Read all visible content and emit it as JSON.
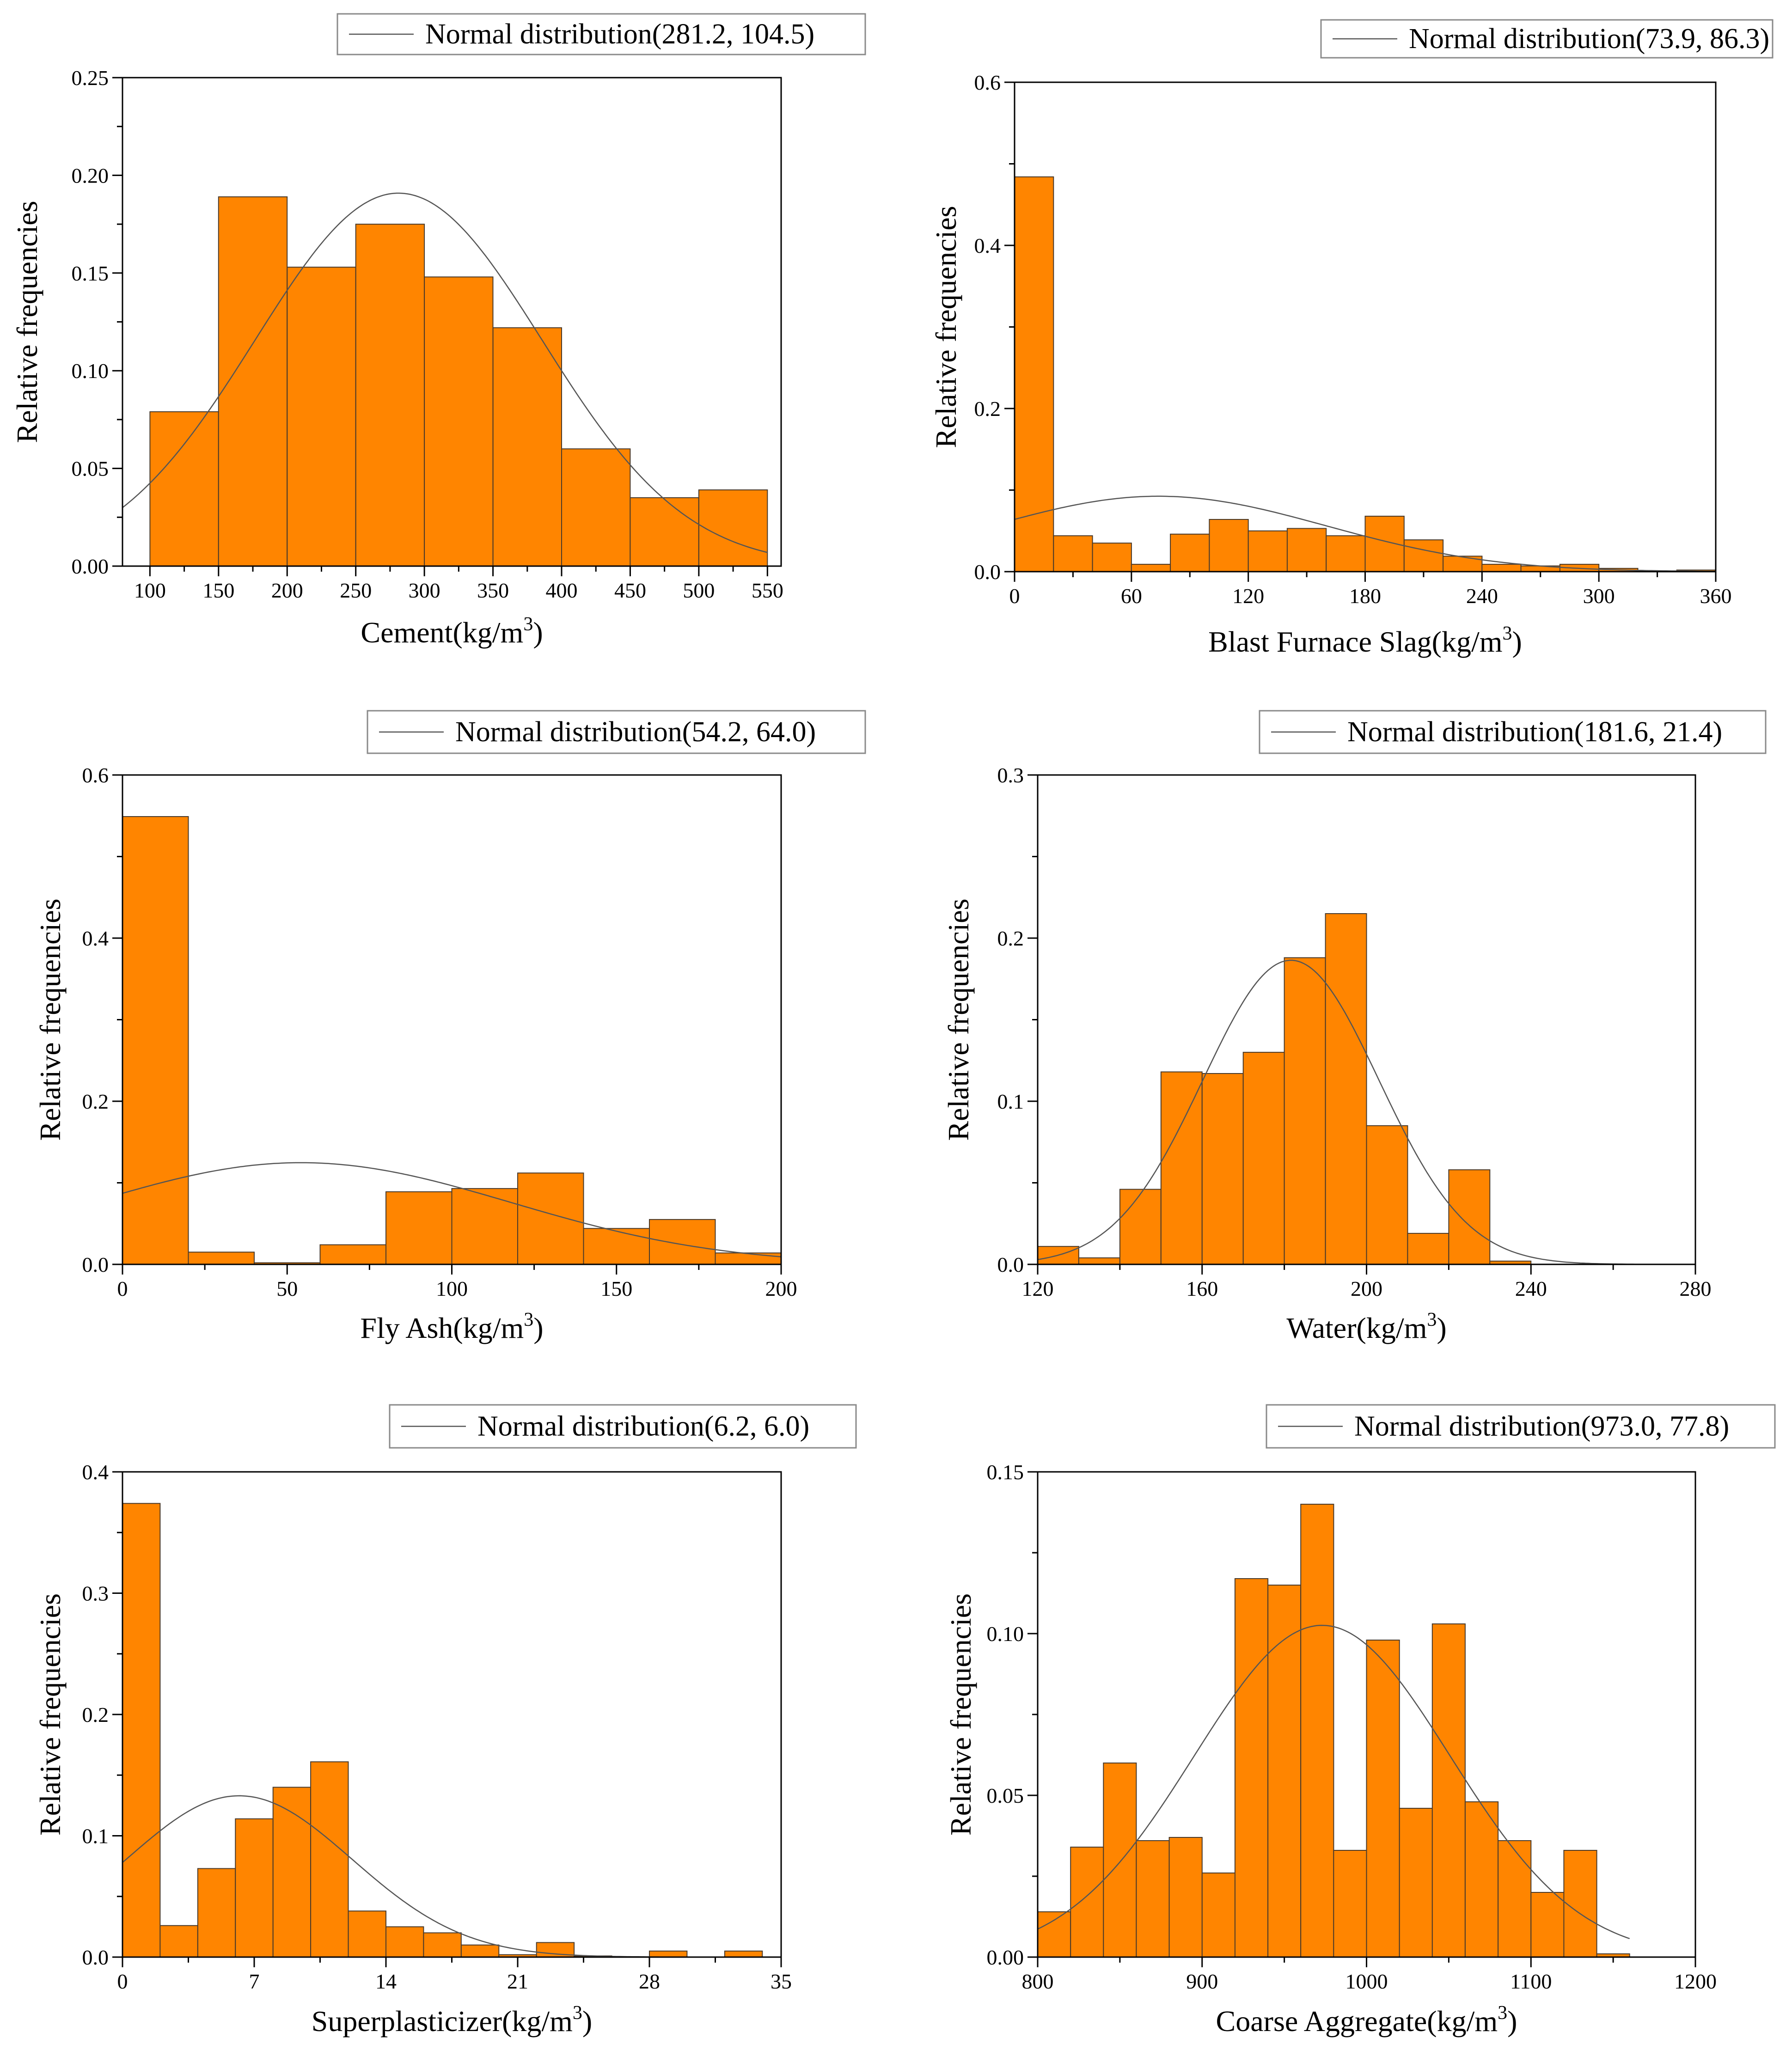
{
  "figure": {
    "ylabel": "Relative frequencies",
    "colors": {
      "bar_fill": "#FF8500",
      "bar_stroke": "#4a3a2a",
      "curve": "#555555",
      "axis": "#000000",
      "legend_border": "#8a8a8a"
    }
  },
  "chart_data": [
    {
      "type": "bar",
      "xlabel_main": "Cement(kg/m",
      "xlabel_sup": "3",
      "xlabel_end": ")",
      "ylabel": "Relative frequencies",
      "legend": "Normal distribution(281.2, 104.5)",
      "normal": {
        "mean": 281.2,
        "sd": 104.5
      },
      "xlim": [
        80,
        560
      ],
      "ylim": [
        0,
        0.25
      ],
      "xticks": [
        100,
        150,
        200,
        250,
        300,
        350,
        400,
        450,
        500,
        550
      ],
      "xtick_labels": [
        "100",
        "150",
        "200",
        "250",
        "300",
        "350",
        "400",
        "450",
        "500",
        "550"
      ],
      "yticks": [
        0,
        0.05,
        0.1,
        0.15,
        0.2,
        0.25
      ],
      "ytick_labels": [
        "0.00",
        "0.05",
        "0.10",
        "0.15",
        "0.20",
        "0.25"
      ],
      "bin_start": 100,
      "bin_width": 50,
      "values": [
        0.079,
        0.189,
        0.153,
        0.175,
        0.148,
        0.122,
        0.06,
        0.035,
        0.039
      ],
      "curve_range": [
        80,
        550
      ]
    },
    {
      "type": "bar",
      "xlabel_main": "Blast Furnace Slag(kg/m",
      "xlabel_sup": "3",
      "xlabel_end": ")",
      "ylabel": "Relative frequencies",
      "legend": "Normal distribution(73.9, 86.3)",
      "normal": {
        "mean": 73.9,
        "sd": 86.3
      },
      "xlim": [
        0,
        360
      ],
      "ylim": [
        0,
        0.6
      ],
      "xticks": [
        0,
        60,
        120,
        180,
        240,
        300,
        360
      ],
      "xtick_labels": [
        "0",
        "60",
        "120",
        "180",
        "240",
        "300",
        "360"
      ],
      "yticks": [
        0,
        0.2,
        0.4,
        0.6
      ],
      "ytick_labels": [
        "0.0",
        "0.2",
        "0.4",
        "0.6"
      ],
      "bin_start": 0,
      "bin_width": 20,
      "values": [
        0.484,
        0.044,
        0.035,
        0.009,
        0.046,
        0.064,
        0.05,
        0.053,
        0.044,
        0.068,
        0.039,
        0.019,
        0.009,
        0.007,
        0.009,
        0.004,
        0.0,
        0.002
      ],
      "curve_range": [
        0,
        360
      ]
    },
    {
      "type": "bar",
      "xlabel_main": "Fly Ash(kg/m",
      "xlabel_sup": "3",
      "xlabel_end": ")",
      "ylabel": "Relative frequencies",
      "legend": "Normal distribution(54.2, 64.0)",
      "normal": {
        "mean": 54.2,
        "sd": 64.0
      },
      "xlim": [
        0,
        200
      ],
      "ylim": [
        0,
        0.6
      ],
      "xticks": [
        0,
        50,
        100,
        150,
        200
      ],
      "xtick_labels": [
        "0",
        "50",
        "100",
        "150",
        "200"
      ],
      "yticks": [
        0,
        0.2,
        0.4,
        0.6
      ],
      "ytick_labels": [
        "0.0",
        "0.2",
        "0.4",
        "0.6"
      ],
      "bin_start": 0,
      "bin_width": 20,
      "values": [
        0.549,
        0.015,
        0.002,
        0.024,
        0.089,
        0.093,
        0.112,
        0.044,
        0.055,
        0.014
      ],
      "curve_range": [
        0,
        200
      ]
    },
    {
      "type": "bar",
      "xlabel_main": "Water(kg/m",
      "xlabel_sup": "3",
      "xlabel_end": ")",
      "ylabel": "Relative frequencies",
      "legend": "Normal distribution(181.6, 21.4)",
      "normal": {
        "mean": 181.6,
        "sd": 21.4
      },
      "xlim": [
        120,
        280
      ],
      "ylim": [
        0,
        0.3
      ],
      "xticks": [
        120,
        160,
        200,
        240,
        280
      ],
      "xtick_labels": [
        "120",
        "160",
        "200",
        "240",
        "280"
      ],
      "yticks": [
        0,
        0.1,
        0.2,
        0.3
      ],
      "ytick_labels": [
        "0.0",
        "0.1",
        "0.2",
        "0.3"
      ],
      "bin_start": 120,
      "bin_width": 10,
      "values": [
        0.011,
        0.004,
        0.046,
        0.118,
        0.117,
        0.13,
        0.188,
        0.215,
        0.085,
        0.019,
        0.058,
        0.002,
        0.0
      ],
      "curve_range": [
        120,
        280
      ]
    },
    {
      "type": "bar",
      "xlabel_main": "Superplasticizer(kg/m",
      "xlabel_sup": "3",
      "xlabel_end": ")",
      "ylabel": "Relative frequencies",
      "legend": "Normal distribution(6.2, 6.0)",
      "normal": {
        "mean": 6.2,
        "sd": 6.0
      },
      "xlim": [
        0,
        35
      ],
      "ylim": [
        0,
        0.4
      ],
      "xticks": [
        0,
        7,
        14,
        21,
        28,
        35
      ],
      "xtick_labels": [
        "0",
        "7",
        "14",
        "21",
        "28",
        "35"
      ],
      "yticks": [
        0,
        0.1,
        0.2,
        0.3,
        0.4
      ],
      "ytick_labels": [
        "0.0",
        "0.1",
        "0.2",
        "0.3",
        "0.4"
      ],
      "bin_start": 0,
      "bin_width": 2,
      "values": [
        0.374,
        0.026,
        0.073,
        0.114,
        0.14,
        0.161,
        0.038,
        0.025,
        0.02,
        0.01,
        0.002,
        0.012,
        0.001,
        0.0,
        0.005,
        0.0,
        0.005
      ],
      "curve_range": [
        0,
        35
      ]
    },
    {
      "type": "bar",
      "xlabel_main": "Coarse Aggregate(kg/m",
      "xlabel_sup": "3",
      "xlabel_end": ")",
      "ylabel": "Relative frequencies",
      "legend": "Normal distribution(973.0, 77.8)",
      "normal": {
        "mean": 973.0,
        "sd": 77.8
      },
      "xlim": [
        800,
        1200
      ],
      "ylim": [
        0,
        0.15
      ],
      "xticks": [
        800,
        900,
        1000,
        1100,
        1200
      ],
      "xtick_labels": [
        "800",
        "900",
        "1000",
        "1100",
        "1200"
      ],
      "yticks": [
        0,
        0.05,
        0.1,
        0.15
      ],
      "ytick_labels": [
        "0.00",
        "0.05",
        "0.10",
        "0.15"
      ],
      "bin_start": 800,
      "bin_width": 20,
      "values": [
        0.014,
        0.034,
        0.06,
        0.036,
        0.037,
        0.026,
        0.117,
        0.115,
        0.14,
        0.033,
        0.098,
        0.046,
        0.103,
        0.048,
        0.036,
        0.02,
        0.033,
        0.001
      ],
      "curve_range": [
        800,
        1160
      ]
    }
  ]
}
